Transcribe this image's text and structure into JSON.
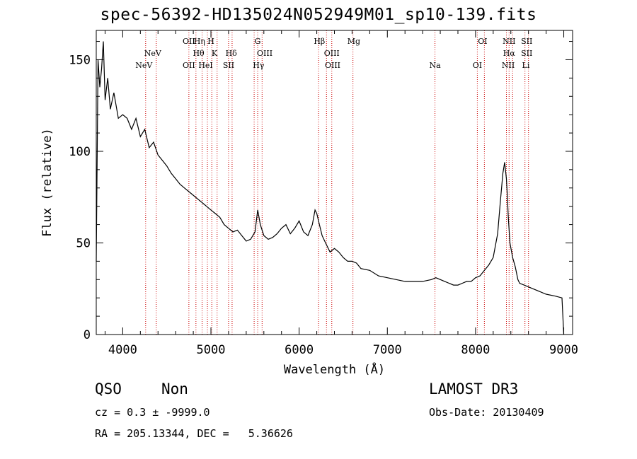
{
  "title": "spec-56392-HD135024N052949M01_sp10-139.fits",
  "info": {
    "class": "QSO",
    "subclass": "Non",
    "survey": "LAMOST DR3",
    "cz": "cz = 0.3 ± -9999.0",
    "obs_date": "Obs-Date: 20130409",
    "radec": "RA = 205.13344, DEC =   5.36626"
  },
  "chart_data": {
    "type": "line",
    "title": "spec-56392-HD135024N052949M01_sp10-139.fits",
    "xlabel": "Wavelength (Å)",
    "ylabel": "Flux (relative)",
    "xlim": [
      3700,
      9100
    ],
    "ylim": [
      0,
      166
    ],
    "x_ticks": [
      4000,
      5000,
      6000,
      7000,
      8000,
      9000
    ],
    "y_ticks": [
      0,
      50,
      100,
      150
    ],
    "grid": false,
    "line_color": "#000000",
    "marker_color": "#cc0000",
    "spectrum": {
      "x": [
        3700,
        3720,
        3740,
        3760,
        3780,
        3800,
        3830,
        3860,
        3900,
        3950,
        4000,
        4050,
        4100,
        4150,
        4200,
        4250,
        4300,
        4350,
        4400,
        4450,
        4500,
        4550,
        4600,
        4650,
        4700,
        4750,
        4800,
        4850,
        4900,
        4950,
        5000,
        5050,
        5100,
        5150,
        5200,
        5250,
        5300,
        5350,
        5400,
        5450,
        5500,
        5530,
        5560,
        5600,
        5650,
        5700,
        5750,
        5800,
        5850,
        5900,
        5950,
        6000,
        6050,
        6100,
        6150,
        6180,
        6200,
        6230,
        6260,
        6300,
        6350,
        6400,
        6450,
        6500,
        6550,
        6600,
        6650,
        6700,
        6800,
        6900,
        7000,
        7100,
        7200,
        7300,
        7400,
        7500,
        7550,
        7600,
        7650,
        7700,
        7750,
        7800,
        7850,
        7900,
        7950,
        8000,
        8050,
        8100,
        8150,
        8200,
        8250,
        8280,
        8310,
        8330,
        8350,
        8360,
        8370,
        8390,
        8420,
        8450,
        8480,
        8500,
        8550,
        8600,
        8700,
        8800,
        8900,
        8980,
        9000
      ],
      "y": [
        40,
        150,
        135,
        145,
        160,
        128,
        140,
        123,
        132,
        118,
        120,
        118,
        112,
        118,
        108,
        112,
        102,
        105,
        98,
        95,
        92,
        88,
        85,
        82,
        80,
        78,
        76,
        74,
        72,
        70,
        68,
        66,
        64,
        60,
        58,
        56,
        57,
        54,
        51,
        52,
        56,
        68,
        60,
        54,
        52,
        53,
        55,
        58,
        60,
        55,
        58,
        62,
        56,
        54,
        60,
        68,
        66,
        60,
        54,
        50,
        45,
        47,
        45,
        42,
        40,
        40,
        39,
        36,
        35,
        32,
        31,
        30,
        29,
        29,
        29,
        30,
        31,
        30,
        29,
        28,
        27,
        27,
        28,
        29,
        29,
        31,
        32,
        35,
        38,
        42,
        55,
        72,
        88,
        94,
        85,
        76,
        65,
        50,
        42,
        37,
        30,
        28,
        27,
        26,
        24,
        22,
        21,
        20,
        0
      ]
    },
    "lines_top": [
      {
        "label": "NeV",
        "x": 4340,
        "row": 1
      },
      {
        "label": "OII",
        "x": 4750,
        "row": 0
      },
      {
        "label": "Hη",
        "x": 4870,
        "row": 0
      },
      {
        "label": "Hθ",
        "x": 4860,
        "row": 1
      },
      {
        "label": "H",
        "x": 5000,
        "row": 0
      },
      {
        "label": "K",
        "x": 5040,
        "row": 1
      },
      {
        "label": "Hδ",
        "x": 5230,
        "row": 1
      },
      {
        "label": "G",
        "x": 5530,
        "row": 0
      },
      {
        "label": "OIII",
        "x": 5610,
        "row": 1
      },
      {
        "label": "Hβ",
        "x": 6230,
        "row": 0
      },
      {
        "label": "OIII",
        "x": 6370,
        "row": 1
      },
      {
        "label": "Mg",
        "x": 6620,
        "row": 0
      },
      {
        "label": "OI",
        "x": 8080,
        "row": 0
      },
      {
        "label": "NII",
        "x": 8380,
        "row": 0
      },
      {
        "label": "Hα",
        "x": 8380,
        "row": 1
      },
      {
        "label": "SII",
        "x": 8580,
        "row": 0
      },
      {
        "label": "SII",
        "x": 8580,
        "row": 1
      }
    ],
    "lines_bottom": [
      {
        "label": "NeV",
        "x": 4240
      },
      {
        "label": "OII",
        "x": 4750
      },
      {
        "label": "HeI",
        "x": 4940
      },
      {
        "label": "SII",
        "x": 5200
      },
      {
        "label": "Hγ",
        "x": 5540
      },
      {
        "label": "OIII",
        "x": 6380
      },
      {
        "label": "Na",
        "x": 7540
      },
      {
        "label": "OI",
        "x": 8020
      },
      {
        "label": "NII",
        "x": 8370
      },
      {
        "label": "Li",
        "x": 8570
      }
    ],
    "marker_x": [
      4260,
      4380,
      4750,
      4830,
      4900,
      4960,
      5010,
      5070,
      5200,
      5240,
      5490,
      5530,
      5580,
      6220,
      6310,
      6370,
      6610,
      7540,
      8020,
      8100,
      8350,
      8380,
      8420,
      8560,
      8600
    ]
  }
}
